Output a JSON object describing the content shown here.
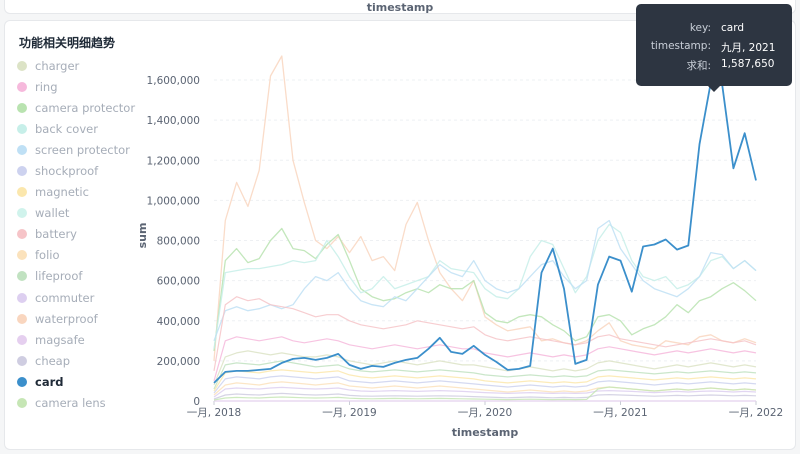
{
  "top_panel": {
    "axis_label": "timestamp"
  },
  "panel": {
    "title": "功能相关明细趋势"
  },
  "legend": [
    {
      "name": "charger",
      "color": "#dce3c6"
    },
    {
      "name": "ring",
      "color": "#f6b9dc"
    },
    {
      "name": "camera protector",
      "color": "#b9e3b0"
    },
    {
      "name": "back cover",
      "color": "#c7efe9"
    },
    {
      "name": "screen protector",
      "color": "#bfe0f5"
    },
    {
      "name": "shockproof",
      "color": "#cdd2ef"
    },
    {
      "name": "magnetic",
      "color": "#fbe7ad"
    },
    {
      "name": "wallet",
      "color": "#d0f3ec"
    },
    {
      "name": "battery",
      "color": "#f6c4c8"
    },
    {
      "name": "folio",
      "color": "#fbe2bc"
    },
    {
      "name": "lifeproof",
      "color": "#c1e2c1"
    },
    {
      "name": "commuter",
      "color": "#ddcff0"
    },
    {
      "name": "waterproof",
      "color": "#f9d6bf"
    },
    {
      "name": "magsafe",
      "color": "#e5cfef"
    },
    {
      "name": "cheap",
      "color": "#cfcde1"
    },
    {
      "name": "card",
      "color": "#3b8fcb"
    },
    {
      "name": "camera lens",
      "color": "#c6e6b5"
    }
  ],
  "tooltip": {
    "key_label": "key:",
    "key_value": "card",
    "ts_label": "timestamp:",
    "ts_value": "九月, 2021",
    "sum_label": "求和:",
    "sum_value": "1,587,650"
  },
  "chart_data": {
    "type": "line",
    "xlabel": "timestamp",
    "ylabel": "sum",
    "x_ticks": [
      "一月, 2018",
      "一月, 2019",
      "一月, 2020",
      "一月, 2021",
      "一月, 2022"
    ],
    "y_ticks": [
      "0",
      "200,000",
      "400,000",
      "600,000",
      "800,000",
      "1,000,000",
      "1,200,000",
      "1,400,000",
      "1,600,000"
    ],
    "ylim": [
      0,
      1700000
    ],
    "x_months": 49,
    "highlight": {
      "series": "card",
      "index": 44
    },
    "series": [
      {
        "name": "card",
        "color": "#3b8fcb",
        "width": 1.8,
        "values": [
          90000,
          145000,
          150000,
          150000,
          155000,
          160000,
          190000,
          210000,
          215000,
          205000,
          215000,
          235000,
          180000,
          160000,
          175000,
          170000,
          190000,
          205000,
          215000,
          260000,
          315000,
          245000,
          235000,
          275000,
          230000,
          195000,
          155000,
          160000,
          175000,
          640000,
          760000,
          560000,
          185000,
          205000,
          580000,
          720000,
          700000,
          545000,
          770000,
          780000,
          805000,
          755000,
          775000,
          1280000,
          1587650,
          1580000,
          1160000,
          1335000,
          1100000
        ]
      },
      {
        "name": "waterproof",
        "color": "#f9d6bf",
        "width": 1.3,
        "values": [
          200000,
          900000,
          1090000,
          970000,
          1150000,
          1620000,
          1720000,
          1200000,
          990000,
          800000,
          760000,
          820000,
          740000,
          820000,
          700000,
          720000,
          650000,
          880000,
          990000,
          800000,
          640000,
          560000,
          500000,
          600000,
          420000,
          380000,
          350000,
          360000,
          370000,
          300000,
          310000,
          290000,
          280000,
          300000,
          350000,
          390000,
          300000,
          280000,
          270000,
          260000,
          300000,
          290000,
          280000,
          320000,
          330000,
          300000,
          290000,
          310000,
          290000
        ]
      },
      {
        "name": "camera protector",
        "color": "#b9e3b0",
        "width": 1.3,
        "values": [
          250000,
          700000,
          760000,
          690000,
          710000,
          800000,
          860000,
          760000,
          750000,
          710000,
          780000,
          830000,
          700000,
          560000,
          520000,
          500000,
          510000,
          540000,
          560000,
          540000,
          580000,
          560000,
          560000,
          600000,
          440000,
          400000,
          390000,
          420000,
          430000,
          420000,
          380000,
          350000,
          300000,
          320000,
          420000,
          430000,
          400000,
          330000,
          360000,
          380000,
          420000,
          480000,
          440000,
          500000,
          520000,
          560000,
          590000,
          550000,
          500000
        ]
      },
      {
        "name": "back cover",
        "color": "#c7efe9",
        "width": 1.3,
        "values": [
          260000,
          640000,
          650000,
          660000,
          660000,
          670000,
          680000,
          700000,
          690000,
          700000,
          800000,
          720000,
          620000,
          540000,
          560000,
          620000,
          560000,
          580000,
          600000,
          620000,
          700000,
          660000,
          650000,
          640000,
          560000,
          520000,
          510000,
          560000,
          720000,
          800000,
          780000,
          660000,
          540000,
          620000,
          800000,
          880000,
          840000,
          700000,
          620000,
          600000,
          620000,
          560000,
          580000,
          620000,
          700000,
          720000,
          660000,
          700000,
          650000
        ]
      },
      {
        "name": "screen protector",
        "color": "#bfe0f5",
        "width": 1.3,
        "values": [
          300000,
          450000,
          470000,
          450000,
          460000,
          480000,
          460000,
          480000,
          560000,
          620000,
          600000,
          640000,
          560000,
          500000,
          480000,
          470000,
          520000,
          500000,
          560000,
          620000,
          680000,
          640000,
          620000,
          700000,
          600000,
          560000,
          540000,
          560000,
          620000,
          680000,
          700000,
          620000,
          560000,
          600000,
          860000,
          900000,
          760000,
          680000,
          600000,
          560000,
          540000,
          520000,
          560000,
          620000,
          740000,
          730000,
          660000,
          700000,
          650000
        ]
      },
      {
        "name": "battery",
        "color": "#f6c4c8",
        "width": 1.2,
        "values": [
          150000,
          480000,
          520000,
          500000,
          510000,
          480000,
          470000,
          460000,
          440000,
          420000,
          430000,
          430000,
          400000,
          380000,
          370000,
          360000,
          370000,
          380000,
          400000,
          390000,
          380000,
          370000,
          360000,
          370000,
          330000,
          310000,
          300000,
          310000,
          320000,
          310000,
          300000,
          290000,
          280000,
          290000,
          320000,
          330000,
          310000,
          300000,
          290000,
          280000,
          270000,
          280000,
          290000,
          300000,
          310000,
          300000,
          290000,
          300000,
          280000
        ]
      },
      {
        "name": "ring",
        "color": "#f6b9dc",
        "width": 1.2,
        "values": [
          100000,
          300000,
          320000,
          310000,
          300000,
          310000,
          320000,
          300000,
          290000,
          300000,
          310000,
          300000,
          280000,
          270000,
          260000,
          270000,
          280000,
          270000,
          260000,
          270000,
          280000,
          270000,
          260000,
          260000,
          240000,
          230000,
          220000,
          230000,
          240000,
          230000,
          220000,
          230000,
          220000,
          230000,
          260000,
          270000,
          260000,
          250000,
          240000,
          230000,
          240000,
          250000,
          240000,
          250000,
          260000,
          250000,
          240000,
          250000,
          240000
        ]
      },
      {
        "name": "charger",
        "color": "#dce3c6",
        "width": 1.2,
        "values": [
          80000,
          220000,
          240000,
          250000,
          240000,
          230000,
          240000,
          230000,
          220000,
          220000,
          230000,
          220000,
          200000,
          190000,
          180000,
          190000,
          200000,
          190000,
          180000,
          190000,
          200000,
          190000,
          180000,
          180000,
          170000,
          160000,
          150000,
          160000,
          170000,
          160000,
          150000,
          160000,
          150000,
          160000,
          190000,
          200000,
          190000,
          180000,
          170000,
          160000,
          170000,
          180000,
          170000,
          180000,
          190000,
          180000,
          170000,
          180000,
          170000
        ]
      },
      {
        "name": "lifeproof",
        "color": "#c1e2c1",
        "width": 1.2,
        "values": [
          60000,
          180000,
          190000,
          185000,
          180000,
          190000,
          200000,
          190000,
          180000,
          170000,
          175000,
          180000,
          160000,
          150000,
          145000,
          150000,
          155000,
          150000,
          145000,
          150000,
          155000,
          150000,
          145000,
          140000,
          130000,
          125000,
          120000,
          125000,
          130000,
          125000,
          120000,
          125000,
          120000,
          125000,
          150000,
          155000,
          150000,
          145000,
          140000,
          135000,
          140000,
          145000,
          140000,
          145000,
          150000,
          145000,
          140000,
          145000,
          140000
        ]
      },
      {
        "name": "magnetic",
        "color": "#fbe7ad",
        "width": 1.2,
        "values": [
          50000,
          140000,
          150000,
          145000,
          140000,
          150000,
          155000,
          150000,
          145000,
          140000,
          145000,
          150000,
          130000,
          120000,
          115000,
          120000,
          125000,
          120000,
          115000,
          120000,
          125000,
          120000,
          115000,
          110000,
          100000,
          95000,
          90000,
          95000,
          100000,
          95000,
          90000,
          95000,
          90000,
          95000,
          120000,
          125000,
          120000,
          115000,
          110000,
          105000,
          110000,
          115000,
          110000,
          115000,
          120000,
          115000,
          110000,
          115000,
          110000
        ]
      },
      {
        "name": "shockproof",
        "color": "#cdd2ef",
        "width": 1.2,
        "values": [
          40000,
          110000,
          120000,
          115000,
          110000,
          120000,
          125000,
          120000,
          115000,
          110000,
          115000,
          120000,
          100000,
          95000,
          90000,
          95000,
          100000,
          95000,
          90000,
          95000,
          100000,
          95000,
          90000,
          85000,
          80000,
          75000,
          70000,
          75000,
          80000,
          75000,
          70000,
          75000,
          70000,
          75000,
          95000,
          100000,
          95000,
          90000,
          85000,
          80000,
          85000,
          90000,
          85000,
          90000,
          95000,
          90000,
          85000,
          90000,
          85000
        ]
      },
      {
        "name": "folio",
        "color": "#fbe2bc",
        "width": 1.2,
        "values": [
          30000,
          80000,
          90000,
          85000,
          80000,
          90000,
          95000,
          90000,
          85000,
          80000,
          85000,
          90000,
          75000,
          70000,
          65000,
          70000,
          75000,
          70000,
          65000,
          70000,
          75000,
          70000,
          65000,
          60000,
          55000,
          50000,
          45000,
          50000,
          55000,
          50000,
          45000,
          50000,
          45000,
          50000,
          65000,
          70000,
          65000,
          60000,
          55000,
          50000,
          55000,
          60000,
          55000,
          60000,
          65000,
          60000,
          55000,
          60000,
          55000
        ]
      },
      {
        "name": "commuter",
        "color": "#ddcff0",
        "width": 1.2,
        "values": [
          20000,
          60000,
          65000,
          62000,
          60000,
          65000,
          68000,
          65000,
          62000,
          60000,
          62000,
          65000,
          55000,
          50000,
          48000,
          50000,
          52000,
          50000,
          48000,
          50000,
          52000,
          50000,
          48000,
          45000,
          42000,
          40000,
          38000,
          40000,
          42000,
          40000,
          38000,
          40000,
          38000,
          40000,
          50000,
          52000,
          50000,
          48000,
          45000,
          42000,
          45000,
          48000,
          45000,
          48000,
          50000,
          48000,
          45000,
          48000,
          45000
        ]
      },
      {
        "name": "magsafe",
        "color": "#e5cfef",
        "width": 1.2,
        "values": [
          0,
          0,
          0,
          0,
          0,
          0,
          0,
          0,
          0,
          0,
          0,
          0,
          0,
          0,
          0,
          0,
          0,
          0,
          0,
          0,
          0,
          0,
          0,
          0,
          0,
          0,
          0,
          0,
          0,
          0,
          0,
          0,
          0,
          0,
          0,
          0,
          0,
          0,
          0,
          0,
          0,
          0,
          0,
          0,
          0,
          0,
          0,
          0,
          0
        ]
      },
      {
        "name": "cheap",
        "color": "#cfcde1",
        "width": 1.2,
        "values": [
          10000,
          30000,
          35000,
          32000,
          30000,
          35000,
          38000,
          35000,
          32000,
          30000,
          32000,
          35000,
          28000,
          25000,
          24000,
          25000,
          26000,
          25000,
          24000,
          25000,
          26000,
          25000,
          24000,
          22000,
          20000,
          18000,
          16000,
          18000,
          20000,
          18000,
          16000,
          18000,
          16000,
          18000,
          30000,
          32000,
          30000,
          28000,
          26000,
          24000,
          26000,
          28000,
          26000,
          28000,
          30000,
          28000,
          26000,
          28000,
          26000
        ]
      },
      {
        "name": "camera lens",
        "color": "#c6e6b5",
        "width": 1.2,
        "values": [
          5000,
          15000,
          18000,
          16000,
          15000,
          18000,
          20000,
          18000,
          16000,
          15000,
          16000,
          18000,
          14000,
          12000,
          11000,
          12000,
          13000,
          12000,
          11000,
          12000,
          13000,
          12000,
          11000,
          10000,
          9000,
          8000,
          7000,
          8000,
          9000,
          8000,
          7000,
          8000,
          7000,
          8000,
          60000,
          70000,
          65000,
          60000,
          55000,
          50000,
          55000,
          60000,
          55000,
          60000,
          65000,
          60000,
          55000,
          60000,
          55000
        ]
      }
    ]
  }
}
